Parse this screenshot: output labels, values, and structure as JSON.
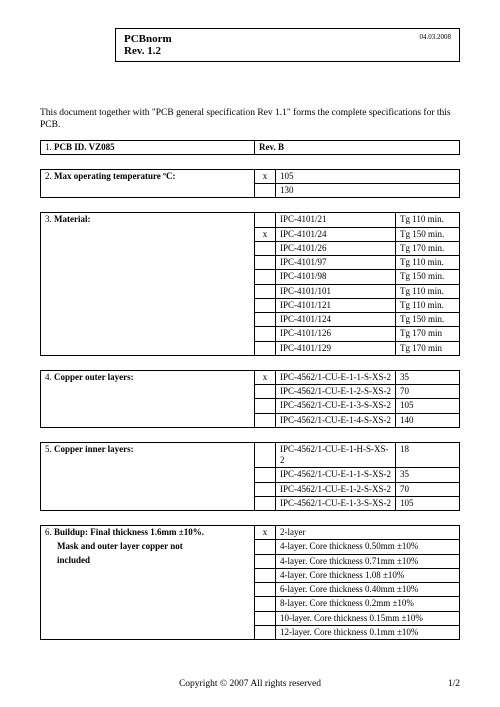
{
  "header": {
    "title": "PCBnorm",
    "revision": "Rev. 1.2",
    "date": "04.03.2008"
  },
  "intro": "This document together with \"PCB general specification Rev 1.1\" forms the complete specifications for this PCB.",
  "section1": {
    "num": "1.",
    "label": "PCB ID. VZ085",
    "rev": "Rev. B"
  },
  "section2": {
    "num": "2.",
    "label": "Max operating temperature ºC:",
    "rows": [
      {
        "x": "x",
        "val": "105"
      },
      {
        "x": "",
        "val": "130"
      }
    ]
  },
  "section3": {
    "num": "3.",
    "label": "Material:",
    "rows": [
      {
        "x": "",
        "spec": "IPC-4101/21",
        "val": "Tg 110 min."
      },
      {
        "x": "x",
        "spec": "IPC-4101/24",
        "val": "Tg 150 min."
      },
      {
        "x": "",
        "spec": "IPC-4101/26",
        "val": "Tg 170 min."
      },
      {
        "x": "",
        "spec": "IPC-4101/97",
        "val": "Tg 110 min."
      },
      {
        "x": "",
        "spec": "IPC-4101/98",
        "val": "Tg 150 min."
      },
      {
        "x": "",
        "spec": "IPC-4101/101",
        "val": "Tg 110 min."
      },
      {
        "x": "",
        "spec": "IPC-4101/121",
        "val": "Tg 110 min."
      },
      {
        "x": "",
        "spec": "IPC-4101/124",
        "val": "Tg 150 min."
      },
      {
        "x": "",
        "spec": "IPC-4101/126",
        "val": "Tg 170 min"
      },
      {
        "x": "",
        "spec": "IPC-4101/129",
        "val": "Tg 170 min"
      }
    ]
  },
  "section4": {
    "num": "4.",
    "label": "Copper outer layers:",
    "rows": [
      {
        "x": "x",
        "spec": "IPC-4562/1-CU-E-1-1-S-XS-2",
        "val": "35"
      },
      {
        "x": "",
        "spec": "IPC-4562/1-CU-E-1-2-S-XS-2",
        "val": "70"
      },
      {
        "x": "",
        "spec": "IPC-4562/1-CU-E-1-3-S-XS-2",
        "val": "105"
      },
      {
        "x": "",
        "spec": "IPC-4562/1-CU-E-1-4-S-XS-2",
        "val": "140"
      }
    ]
  },
  "section5": {
    "num": "5.",
    "label": "Copper inner layers:",
    "rows": [
      {
        "x": "",
        "spec": "IPC-4562/1-CU-E-1-H-S-XS-2",
        "val": "18"
      },
      {
        "x": "",
        "spec": "IPC-4562/1-CU-E-1-1-S-XS-2",
        "val": "35"
      },
      {
        "x": "",
        "spec": "IPC-4562/1-CU-E-1-2-S-XS-2",
        "val": "70"
      },
      {
        "x": "",
        "spec": "IPC-4562/1-CU-E-1-3-S-XS-2",
        "val": "105"
      }
    ]
  },
  "section6": {
    "num": "6.",
    "label1": "Buildup: Final thickness 1.6mm ±10%.",
    "label2": "Mask and outer layer copper not",
    "label3": "included",
    "rows": [
      {
        "x": "x",
        "spec": "2-layer"
      },
      {
        "x": "",
        "spec": "4-layer. Core thickness 0.50mm ±10%"
      },
      {
        "x": "",
        "spec": "4-layer. Core thickness 0.71mm ±10%"
      },
      {
        "x": "",
        "spec": "4-layer. Core thickness 1.08 ±10%"
      },
      {
        "x": "",
        "spec": "6-layer. Core thickness 0.40mm ±10%"
      },
      {
        "x": "",
        "spec": "8-layer. Core thickness 0.2mm ±10%"
      },
      {
        "x": "",
        "spec": "10-layer. Core thickness 0.15mm ±10%"
      },
      {
        "x": "",
        "spec": "12-layer. Core thickness 0.1mm ±10%"
      }
    ]
  },
  "footer": {
    "copyright": "Copyright © 2007 All rights reserved",
    "page": "1/2"
  }
}
